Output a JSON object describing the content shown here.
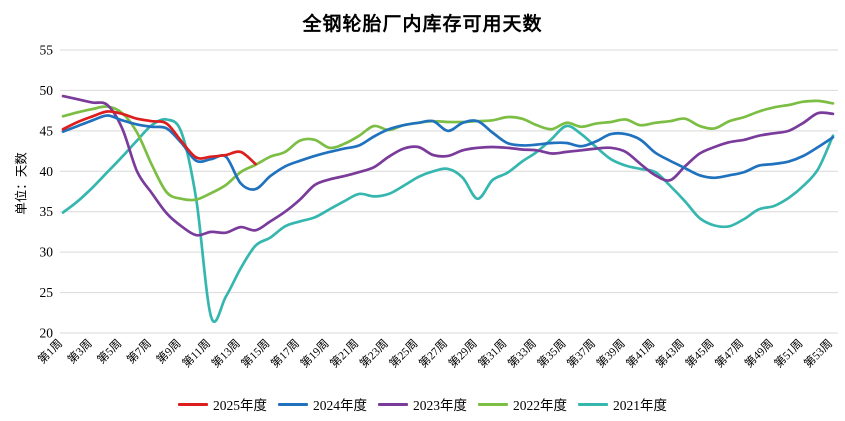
{
  "title": "全钢轮胎厂内库存可用天数",
  "y_axis": {
    "title": "单位：天数",
    "ticks": [
      20,
      25,
      30,
      35,
      40,
      45,
      50,
      55
    ],
    "min": 20,
    "max": 55
  },
  "x_axis": {
    "tick_labels": [
      "第1周",
      "第3周",
      "第5周",
      "第7周",
      "第9周",
      "第11周",
      "第13周",
      "第15周",
      "第17周",
      "第19周",
      "第21周",
      "第23周",
      "第25周",
      "第27周",
      "第29周",
      "第31周",
      "第33周",
      "第35周",
      "第37周",
      "第39周",
      "第41周",
      "第43周",
      "第45周",
      "第47周",
      "第49周",
      "第51周",
      "第53周"
    ]
  },
  "legend": {
    "items": [
      {
        "label": "2025年度",
        "color": "#dc1e1e"
      },
      {
        "label": "2024年度",
        "color": "#2072be"
      },
      {
        "label": "2023年度",
        "color": "#7a3b9b"
      },
      {
        "label": "2022年度",
        "color": "#7cbe44"
      },
      {
        "label": "2021年度",
        "color": "#35b7af"
      }
    ]
  },
  "colors": {
    "gridline": "#d9d9d9",
    "text": "#000000",
    "background": "#ffffff"
  },
  "chart_data": {
    "type": "line",
    "title": "全钢轮胎厂内库存可用天数",
    "ylabel": "单位：天数",
    "ylim": [
      20,
      55
    ],
    "grid": true,
    "legend_position": "bottom",
    "x_unit": "周 (week number 1-53)",
    "x": [
      1,
      2,
      3,
      4,
      5,
      6,
      7,
      8,
      9,
      10,
      11,
      12,
      13,
      14,
      15,
      16,
      17,
      18,
      19,
      20,
      21,
      22,
      23,
      24,
      25,
      26,
      27,
      28,
      29,
      30,
      31,
      32,
      33,
      34,
      35,
      36,
      37,
      38,
      39,
      40,
      41,
      42,
      43,
      44,
      45,
      46,
      47,
      48,
      49,
      50,
      51,
      52,
      53
    ],
    "series": [
      {
        "name": "2025年度",
        "color": "#dc1e1e",
        "values": [
          45.2,
          46.1,
          46.8,
          47.4,
          47.1,
          46.5,
          46.2,
          45.9,
          43.7,
          41.7,
          41.8,
          42.0,
          42.4,
          40.9
        ]
      },
      {
        "name": "2024年度",
        "color": "#2072be",
        "values": [
          44.9,
          45.6,
          46.3,
          46.9,
          46.3,
          45.8,
          45.5,
          45.3,
          43.5,
          41.3,
          41.5,
          41.8,
          38.5,
          37.8,
          39.4,
          40.6,
          41.3,
          41.9,
          42.4,
          42.8,
          43.2,
          44.3,
          45.2,
          45.7,
          46.0,
          46.2,
          45.0,
          46.0,
          46.2,
          44.8,
          43.5,
          43.2,
          43.3,
          43.5,
          43.5,
          43.1,
          43.7,
          44.6,
          44.6,
          43.9,
          42.3,
          41.3,
          40.4,
          39.5,
          39.2,
          39.5,
          39.9,
          40.7,
          40.9,
          41.2,
          41.9,
          43.0,
          44.2
        ]
      },
      {
        "name": "2023年度",
        "color": "#7a3b9b",
        "values": [
          49.3,
          48.9,
          48.5,
          48.2,
          45.3,
          40.0,
          37.3,
          34.8,
          33.2,
          32.1,
          32.5,
          32.4,
          33.1,
          32.7,
          33.8,
          35.0,
          36.5,
          38.3,
          39.0,
          39.4,
          39.9,
          40.5,
          41.8,
          42.8,
          43.0,
          42.0,
          41.9,
          42.6,
          42.9,
          43.0,
          42.9,
          42.7,
          42.6,
          42.2,
          42.4,
          42.6,
          42.8,
          42.9,
          42.4,
          40.9,
          39.5,
          38.9,
          40.6,
          42.2,
          43.0,
          43.6,
          43.9,
          44.4,
          44.7,
          45.0,
          46.0,
          47.2,
          47.1
        ]
      },
      {
        "name": "2022年度",
        "color": "#7cbe44",
        "values": [
          46.8,
          47.3,
          47.7,
          48.0,
          47.2,
          44.8,
          40.8,
          37.4,
          36.6,
          36.5,
          37.3,
          38.3,
          39.9,
          40.8,
          41.8,
          42.4,
          43.8,
          43.9,
          42.9,
          43.4,
          44.4,
          45.6,
          45.1,
          45.7,
          46.0,
          46.2,
          46.1,
          46.1,
          46.2,
          46.3,
          46.7,
          46.5,
          45.7,
          45.2,
          46.0,
          45.5,
          45.9,
          46.1,
          46.4,
          45.7,
          46.0,
          46.2,
          46.5,
          45.6,
          45.3,
          46.2,
          46.7,
          47.4,
          47.9,
          48.2,
          48.6,
          48.7,
          48.4
        ]
      },
      {
        "name": "2021年度",
        "color": "#35b7af",
        "values": [
          34.9,
          36.3,
          38.0,
          39.9,
          41.8,
          43.8,
          45.7,
          46.4,
          44.8,
          36.5,
          22.0,
          24.5,
          28.0,
          30.8,
          31.8,
          33.2,
          33.8,
          34.3,
          35.3,
          36.3,
          37.2,
          36.9,
          37.2,
          38.2,
          39.3,
          40.0,
          40.3,
          39.2,
          36.6,
          38.9,
          39.8,
          41.2,
          42.4,
          44.0,
          45.6,
          44.6,
          43.0,
          41.5,
          40.7,
          40.3,
          39.9,
          38.2,
          36.3,
          34.2,
          33.3,
          33.2,
          34.1,
          35.3,
          35.7,
          36.7,
          38.2,
          40.3,
          44.4
        ]
      }
    ]
  }
}
